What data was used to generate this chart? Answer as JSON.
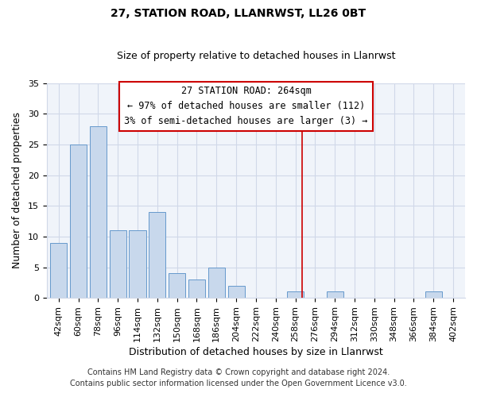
{
  "title": "27, STATION ROAD, LLANRWST, LL26 0BT",
  "subtitle": "Size of property relative to detached houses in Llanrwst",
  "xlabel": "Distribution of detached houses by size in Llanrwst",
  "ylabel": "Number of detached properties",
  "bar_labels": [
    "42sqm",
    "60sqm",
    "78sqm",
    "96sqm",
    "114sqm",
    "132sqm",
    "150sqm",
    "168sqm",
    "186sqm",
    "204sqm",
    "222sqm",
    "240sqm",
    "258sqm",
    "276sqm",
    "294sqm",
    "312sqm",
    "330sqm",
    "348sqm",
    "366sqm",
    "384sqm",
    "402sqm"
  ],
  "bar_values": [
    9,
    25,
    28,
    11,
    11,
    14,
    4,
    3,
    5,
    2,
    0,
    0,
    1,
    0,
    1,
    0,
    0,
    0,
    0,
    1,
    0
  ],
  "bar_color": "#c8d8ec",
  "bar_edgecolor": "#6699cc",
  "ylim": [
    0,
    35
  ],
  "yticks": [
    0,
    5,
    10,
    15,
    20,
    25,
    30,
    35
  ],
  "vline_color": "#cc0000",
  "annotation_title": "27 STATION ROAD: 264sqm",
  "annotation_line1": "← 97% of detached houses are smaller (112)",
  "annotation_line2": "3% of semi-detached houses are larger (3) →",
  "footer1": "Contains HM Land Registry data © Crown copyright and database right 2024.",
  "footer2": "Contains public sector information licensed under the Open Government Licence v3.0.",
  "title_fontsize": 10,
  "subtitle_fontsize": 9,
  "xlabel_fontsize": 9,
  "ylabel_fontsize": 9,
  "tick_fontsize": 8,
  "annotation_fontsize": 8.5,
  "footer_fontsize": 7,
  "bg_color": "#ffffff",
  "plot_bg_color": "#f0f4fa",
  "grid_color": "#d0d8e8"
}
